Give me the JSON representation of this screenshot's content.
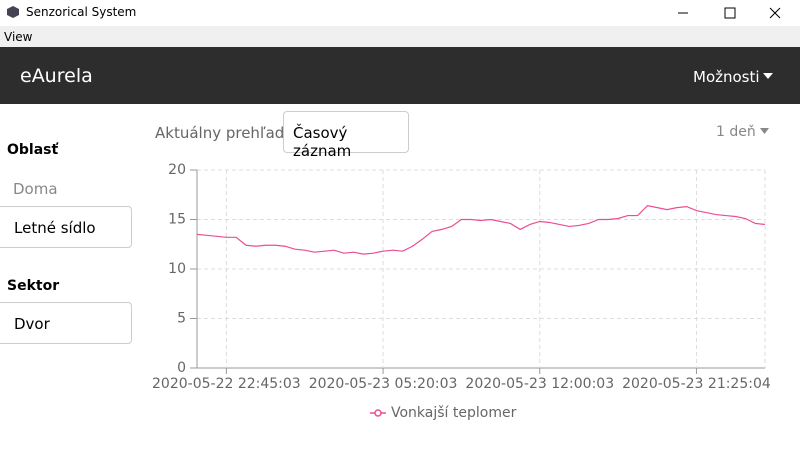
{
  "window": {
    "title": "Senzorical System"
  },
  "menu": [
    "View"
  ],
  "navbar": {
    "brand": "eAurela",
    "options": "Možnosti"
  },
  "sidebar": [
    {
      "heading": "Oblasť",
      "items": [
        "Doma",
        "Letné sídlo"
      ]
    },
    {
      "heading": "Sektor",
      "items": [
        "Dvor"
      ]
    }
  ],
  "tabs": {
    "overview": "Aktuálny prehľad",
    "active": "Časový záznam",
    "range": "1 deň"
  },
  "chart_data": {
    "type": "line",
    "categories": [
      null,
      null,
      null,
      "2020-05-22 22:45:03",
      null,
      null,
      null,
      null,
      null,
      null,
      null,
      null,
      null,
      null,
      null,
      null,
      null,
      null,
      null,
      "2020-05-23 05:20:03",
      null,
      null,
      null,
      null,
      null,
      null,
      null,
      null,
      null,
      null,
      null,
      null,
      null,
      null,
      null,
      "2020-05-23 12:00:03",
      null,
      null,
      null,
      null,
      null,
      null,
      null,
      null,
      null,
      null,
      null,
      null,
      null,
      null,
      null,
      "2020-05-23 21:25:04",
      null,
      null,
      null,
      null,
      null,
      null,
      null
    ],
    "series": [
      {
        "name": "Vonkajší teplomer",
        "color": "#ec4d93",
        "values": [
          13.5,
          13.4,
          13.3,
          13.2,
          13.2,
          12.4,
          12.3,
          12.4,
          12.4,
          12.3,
          12.0,
          11.9,
          11.7,
          11.8,
          11.9,
          11.6,
          11.7,
          11.5,
          11.6,
          11.8,
          11.9,
          11.8,
          12.3,
          13.0,
          13.8,
          14.0,
          14.3,
          15.0,
          15.0,
          14.9,
          15.0,
          14.8,
          14.6,
          14.0,
          14.5,
          14.8,
          14.7,
          14.5,
          14.3,
          14.4,
          14.6,
          15.0,
          15.0,
          15.1,
          15.4,
          15.4,
          16.4,
          16.2,
          16.0,
          16.2,
          16.3,
          15.9,
          15.7,
          15.5,
          15.4,
          15.3,
          15.1,
          14.6,
          14.5
        ]
      }
    ],
    "ylim": [
      0,
      20
    ],
    "yticks": [
      0,
      5,
      10,
      15,
      20
    ],
    "grid": true
  }
}
